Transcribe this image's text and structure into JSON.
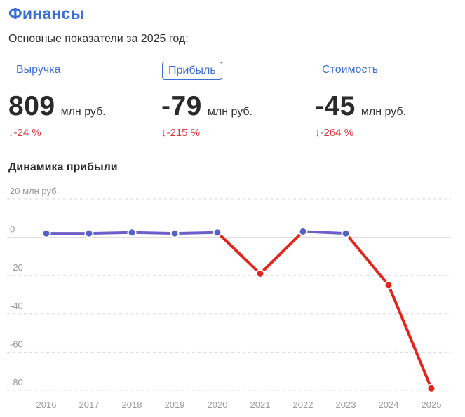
{
  "header": {
    "title": "Финансы",
    "subtitle": "Основные показатели за 2025 год:"
  },
  "tabs": [
    {
      "label": "Выручка",
      "active": false
    },
    {
      "label": "Прибыль",
      "active": true
    },
    {
      "label": "Стоимость",
      "active": false
    }
  ],
  "metrics": [
    {
      "value": "809",
      "unit": "млн руб.",
      "change": "↓-24 %"
    },
    {
      "value": "-79",
      "unit": "млн руб.",
      "change": "↓-215 %"
    },
    {
      "value": "-45",
      "unit": "млн руб.",
      "change": "↓-264 %"
    }
  ],
  "chart_section": {
    "title": "Динамика прибыли"
  },
  "colors": {
    "accent": "#3b6fd6",
    "positive_line": "#6b5fc9",
    "positive_point": "#5560c8",
    "negative": "#e3261d",
    "grid": "#d9d9d9",
    "change_text": "#d63a3a"
  },
  "chart_data": {
    "type": "line",
    "x": [
      "2016",
      "2017",
      "2018",
      "2019",
      "2020",
      "2021",
      "2022",
      "2023",
      "2024",
      "2025"
    ],
    "series": [
      {
        "values": [
          2,
          2,
          2.5,
          2,
          2.5,
          -19,
          3,
          2,
          -25,
          -79
        ]
      }
    ],
    "y_ticks": [
      {
        "value": 20,
        "label": "20 млн руб."
      },
      {
        "value": 0,
        "label": "0"
      },
      {
        "value": -20,
        "label": "-20"
      },
      {
        "value": -40,
        "label": "-40"
      },
      {
        "value": -60,
        "label": "-60"
      },
      {
        "value": -80,
        "label": "-80"
      }
    ],
    "ylim": [
      -80,
      20
    ],
    "grid": true
  }
}
